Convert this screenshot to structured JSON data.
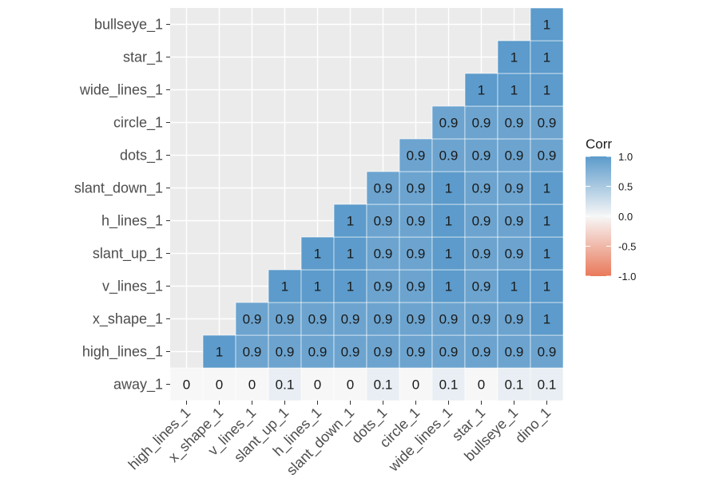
{
  "chart_data": {
    "type": "heatmap",
    "x_labels": [
      "high_lines_1",
      "x_shape_1",
      "v_lines_1",
      "slant_up_1",
      "h_lines_1",
      "slant_down_1",
      "dots_1",
      "circle_1",
      "wide_lines_1",
      "star_1",
      "bullseye_1",
      "dino_1"
    ],
    "y_labels": [
      "away_1",
      "high_lines_1",
      "x_shape_1",
      "v_lines_1",
      "slant_up_1",
      "h_lines_1",
      "slant_down_1",
      "dots_1",
      "circle_1",
      "wide_lines_1",
      "star_1",
      "bullseye_1"
    ],
    "cells": [
      {
        "y": "away_1",
        "values": [
          0.0,
          0.0,
          0.0,
          0.1,
          0.0,
          0.0,
          0.1,
          0.0,
          0.1,
          0.0,
          0.1,
          0.1
        ],
        "labels": [
          "0",
          "0",
          "0",
          "0.1",
          "0",
          "0",
          "0.1",
          "0",
          "0.1",
          "0",
          "0.1",
          "0.1"
        ]
      },
      {
        "y": "high_lines_1",
        "values": [
          null,
          1.0,
          0.9,
          0.9,
          0.9,
          0.9,
          0.9,
          0.9,
          0.9,
          0.9,
          0.9,
          0.9
        ],
        "labels": [
          null,
          "1",
          "0.9",
          "0.9",
          "0.9",
          "0.9",
          "0.9",
          "0.9",
          "0.9",
          "0.9",
          "0.9",
          "0.9"
        ]
      },
      {
        "y": "x_shape_1",
        "values": [
          null,
          null,
          0.9,
          0.9,
          0.9,
          0.9,
          0.9,
          0.9,
          0.9,
          0.9,
          0.9,
          1.0
        ],
        "labels": [
          null,
          null,
          "0.9",
          "0.9",
          "0.9",
          "0.9",
          "0.9",
          "0.9",
          "0.9",
          "0.9",
          "0.9",
          "1"
        ]
      },
      {
        "y": "v_lines_1",
        "values": [
          null,
          null,
          null,
          1.0,
          1.0,
          1.0,
          0.9,
          0.9,
          1.0,
          0.9,
          1.0,
          1.0
        ],
        "labels": [
          null,
          null,
          null,
          "1",
          "1",
          "1",
          "0.9",
          "0.9",
          "1",
          "0.9",
          "1",
          "1"
        ]
      },
      {
        "y": "slant_up_1",
        "values": [
          null,
          null,
          null,
          null,
          1.0,
          1.0,
          0.9,
          0.9,
          1.0,
          0.9,
          0.9,
          1.0
        ],
        "labels": [
          null,
          null,
          null,
          null,
          "1",
          "1",
          "0.9",
          "0.9",
          "1",
          "0.9",
          "0.9",
          "1"
        ]
      },
      {
        "y": "h_lines_1",
        "values": [
          null,
          null,
          null,
          null,
          null,
          1.0,
          0.9,
          0.9,
          1.0,
          0.9,
          0.9,
          1.0
        ],
        "labels": [
          null,
          null,
          null,
          null,
          null,
          "1",
          "0.9",
          "0.9",
          "1",
          "0.9",
          "0.9",
          "1"
        ]
      },
      {
        "y": "slant_down_1",
        "values": [
          null,
          null,
          null,
          null,
          null,
          null,
          0.9,
          0.9,
          1.0,
          0.9,
          0.9,
          1.0
        ],
        "labels": [
          null,
          null,
          null,
          null,
          null,
          null,
          "0.9",
          "0.9",
          "1",
          "0.9",
          "0.9",
          "1"
        ]
      },
      {
        "y": "dots_1",
        "values": [
          null,
          null,
          null,
          null,
          null,
          null,
          null,
          0.9,
          0.9,
          0.9,
          0.9,
          0.9
        ],
        "labels": [
          null,
          null,
          null,
          null,
          null,
          null,
          null,
          "0.9",
          "0.9",
          "0.9",
          "0.9",
          "0.9"
        ]
      },
      {
        "y": "circle_1",
        "values": [
          null,
          null,
          null,
          null,
          null,
          null,
          null,
          null,
          0.9,
          0.9,
          0.9,
          0.9
        ],
        "labels": [
          null,
          null,
          null,
          null,
          null,
          null,
          null,
          null,
          "0.9",
          "0.9",
          "0.9",
          "0.9"
        ]
      },
      {
        "y": "wide_lines_1",
        "values": [
          null,
          null,
          null,
          null,
          null,
          null,
          null,
          null,
          null,
          1.0,
          1.0,
          1.0
        ],
        "labels": [
          null,
          null,
          null,
          null,
          null,
          null,
          null,
          null,
          null,
          "1",
          "1",
          "1"
        ]
      },
      {
        "y": "star_1",
        "values": [
          null,
          null,
          null,
          null,
          null,
          null,
          null,
          null,
          null,
          null,
          1.0,
          1.0
        ],
        "labels": [
          null,
          null,
          null,
          null,
          null,
          null,
          null,
          null,
          null,
          null,
          "1",
          "1"
        ]
      },
      {
        "y": "bullseye_1",
        "values": [
          null,
          null,
          null,
          null,
          null,
          null,
          null,
          null,
          null,
          null,
          null,
          1.0
        ],
        "labels": [
          null,
          null,
          null,
          null,
          null,
          null,
          null,
          null,
          null,
          null,
          null,
          "1"
        ]
      }
    ],
    "color_scale": {
      "low": "#E9795A",
      "mid": "#F7F7F7",
      "high": "#5C9BCB",
      "limits": [
        -1.0,
        1.0
      ]
    },
    "legend": {
      "title": "Corr",
      "ticks": [
        "1.0",
        "0.5",
        "0.0",
        "-0.5",
        "-1.0"
      ],
      "tick_values": [
        1.0,
        0.5,
        0.0,
        -0.5,
        -1.0
      ],
      "position": "right"
    },
    "grid": true,
    "panel_background": "#EBEBEB"
  }
}
